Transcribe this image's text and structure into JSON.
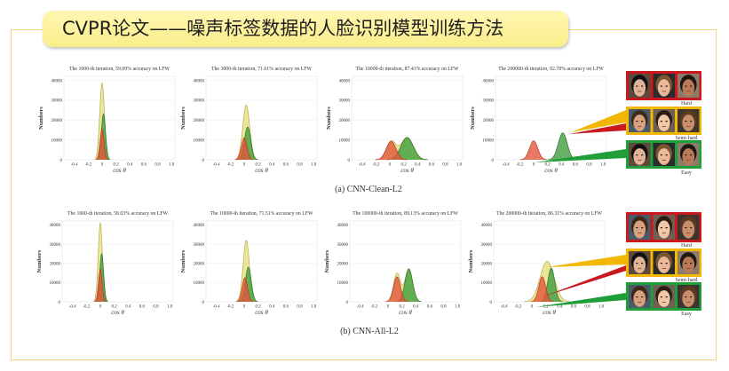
{
  "slide": {
    "title": "CVPR论文——噪声标签数据的人脸识别模型训练方法"
  },
  "figure": {
    "caption_a": "(a) CNN-Clean-L2",
    "caption_b": "(b) CNN-All-L2",
    "sample_labels": {
      "hard": "Hard",
      "semi_hard": "Semi-hard",
      "easy": "Easy"
    }
  },
  "colors": {
    "title_bg": "#fbf29a",
    "frame": "#f2d582",
    "hard": "#c8191f",
    "semi_hard": "#f2b705",
    "easy": "#1f9e3a"
  },
  "chart_data": [
    {
      "type": "area",
      "title": "The 1000-th iteration, 59.09% accuracy on LFW",
      "xlabel": "cos θ",
      "ylabel": "Numbers",
      "xlim": [
        -0.55,
        1.05
      ],
      "ylim": [
        0,
        42000
      ],
      "grid": true,
      "xticks": [
        "-0.4",
        "-0.2",
        "0",
        "0.2",
        "0.4",
        "0.6",
        "0.8",
        "1.0"
      ],
      "yticks": [
        "0",
        "10000",
        "20000",
        "30000",
        "40000"
      ],
      "series": [
        {
          "color": "#e6df7c",
          "edge": "#b6ad4a",
          "peaks": [
            {
              "x": 0.0,
              "y": 38500,
              "sd": 0.034
            }
          ]
        },
        {
          "color": "#3e9b3c",
          "edge": "#2c752b",
          "peaks": [
            {
              "x": 0.02,
              "y": 23000,
              "sd": 0.03
            }
          ]
        },
        {
          "color": "#e4523b",
          "edge": "#b93a26",
          "peaks": [
            {
              "x": 0.0,
              "y": 15500,
              "sd": 0.028
            }
          ]
        }
      ]
    },
    {
      "type": "area",
      "title": "The 3000-th iteration, 71.61% accuracy on LFW",
      "xlabel": "cos θ",
      "ylabel": "Numbers",
      "xlim": [
        -0.55,
        1.05
      ],
      "ylim": [
        0,
        42000
      ],
      "grid": true,
      "xticks": [
        "-0.4",
        "-0.2",
        "0",
        "0.2",
        "0.4",
        "0.6",
        "0.8",
        "1.0"
      ],
      "yticks": [
        "0",
        "10000",
        "20000",
        "30000",
        "40000"
      ],
      "series": [
        {
          "color": "#e6df7c",
          "edge": "#b6ad4a",
          "peaks": [
            {
              "x": 0.03,
              "y": 27500,
              "sd": 0.05
            }
          ]
        },
        {
          "color": "#3e9b3c",
          "edge": "#2c752b",
          "peaks": [
            {
              "x": 0.05,
              "y": 16500,
              "sd": 0.045
            }
          ]
        },
        {
          "color": "#e4523b",
          "edge": "#b93a26",
          "peaks": [
            {
              "x": 0.0,
              "y": 11000,
              "sd": 0.04
            }
          ]
        }
      ]
    },
    {
      "type": "area",
      "title": "The 10000-th iteration, 87.41% accuracy on LFW",
      "xlabel": "cos θ",
      "ylabel": "Numbers",
      "xlim": [
        -0.55,
        1.05
      ],
      "ylim": [
        0,
        42000
      ],
      "grid": true,
      "xticks": [
        "-0.4",
        "-0.2",
        "0",
        "0.2",
        "0.4",
        "0.6",
        "0.8",
        "1.0"
      ],
      "yticks": [
        "0",
        "10000",
        "20000",
        "30000",
        "40000"
      ],
      "series": [
        {
          "color": "#e6df7c",
          "edge": "#b6ad4a",
          "peaks": [
            {
              "x": 0.02,
              "y": 9200,
              "sd": 0.07
            },
            {
              "x": 0.25,
              "y": 11200,
              "sd": 0.09
            }
          ]
        },
        {
          "color": "#3e9b3c",
          "edge": "#2c752b",
          "peaks": [
            {
              "x": 0.25,
              "y": 11200,
              "sd": 0.09
            }
          ]
        },
        {
          "color": "#e4523b",
          "edge": "#b93a26",
          "peaks": [
            {
              "x": 0.02,
              "y": 9200,
              "sd": 0.07
            }
          ]
        }
      ]
    },
    {
      "type": "area",
      "title": "The 200000-th iteration, 92.78% accuracy on LFW",
      "xlabel": "cos θ",
      "ylabel": "Numbers",
      "xlim": [
        -0.55,
        1.05
      ],
      "ylim": [
        0,
        42000
      ],
      "grid": true,
      "xticks": [
        "-0.4",
        "-0.2",
        "0",
        "0.2",
        "0.4",
        "0.6",
        "0.8",
        "1.0"
      ],
      "yticks": [
        "0",
        "10000",
        "20000",
        "30000",
        "40000"
      ],
      "series": [
        {
          "color": "#3e9b3c",
          "edge": "#2c752b",
          "peaks": [
            {
              "x": 0.42,
              "y": 13500,
              "sd": 0.065
            }
          ]
        },
        {
          "color": "#e4523b",
          "edge": "#b93a26",
          "peaks": [
            {
              "x": 0.0,
              "y": 9500,
              "sd": 0.06
            }
          ]
        }
      ]
    },
    {
      "type": "area",
      "title": "The 1000-th iteration, 58.03% accuracy on LFW",
      "xlabel": "cos θ",
      "ylabel": "Numbers",
      "xlim": [
        -0.55,
        1.05
      ],
      "ylim": [
        0,
        42000
      ],
      "grid": true,
      "xticks": [
        "-0.4",
        "-0.2",
        "0",
        "0.2",
        "0.4",
        "0.6",
        "0.8",
        "1.0"
      ],
      "yticks": [
        "0",
        "10000",
        "20000",
        "30000",
        "40000"
      ],
      "series": [
        {
          "color": "#e6df7c",
          "edge": "#b6ad4a",
          "peaks": [
            {
              "x": 0.0,
              "y": 41000,
              "sd": 0.03
            }
          ]
        },
        {
          "color": "#3e9b3c",
          "edge": "#2c752b",
          "peaks": [
            {
              "x": 0.02,
              "y": 25000,
              "sd": 0.028
            }
          ]
        },
        {
          "color": "#e4523b",
          "edge": "#b93a26",
          "peaks": [
            {
              "x": 0.0,
              "y": 17000,
              "sd": 0.026
            }
          ]
        }
      ]
    },
    {
      "type": "area",
      "title": "The 10000-th iteration, 71.51% accuracy on LFW",
      "xlabel": "cos θ",
      "ylabel": "Numbers",
      "xlim": [
        -0.55,
        1.05
      ],
      "ylim": [
        0,
        42000
      ],
      "grid": true,
      "xticks": [
        "-0.4",
        "-0.2",
        "0",
        "0.2",
        "0.4",
        "0.6",
        "0.8",
        "1.0"
      ],
      "yticks": [
        "0",
        "10000",
        "20000",
        "30000",
        "40000"
      ],
      "series": [
        {
          "color": "#e6df7c",
          "edge": "#b6ad4a",
          "peaks": [
            {
              "x": 0.03,
              "y": 32000,
              "sd": 0.045
            }
          ]
        },
        {
          "color": "#3e9b3c",
          "edge": "#2c752b",
          "peaks": [
            {
              "x": 0.06,
              "y": 18000,
              "sd": 0.042
            }
          ]
        },
        {
          "color": "#e4523b",
          "edge": "#b93a26",
          "peaks": [
            {
              "x": 0.01,
              "y": 12500,
              "sd": 0.038
            }
          ]
        }
      ]
    },
    {
      "type": "area",
      "title": "The 100000-th iteration, 89.13% accuracy on LFW",
      "xlabel": "cos θ",
      "ylabel": "Numbers",
      "xlim": [
        -0.55,
        1.05
      ],
      "ylim": [
        0,
        42000
      ],
      "grid": true,
      "xticks": [
        "-0.4",
        "-0.2",
        "0",
        "0.2",
        "0.4",
        "0.6",
        "0.8",
        "1.0"
      ],
      "yticks": [
        "0",
        "10000",
        "20000",
        "30000",
        "40000"
      ],
      "series": [
        {
          "color": "#e6df7c",
          "edge": "#b6ad4a",
          "peaks": [
            {
              "x": 0.13,
              "y": 14800,
              "sd": 0.05
            },
            {
              "x": 0.3,
              "y": 17200,
              "sd": 0.055
            }
          ]
        },
        {
          "color": "#3e9b3c",
          "edge": "#2c752b",
          "peaks": [
            {
              "x": 0.3,
              "y": 17000,
              "sd": 0.055
            }
          ]
        },
        {
          "color": "#e4523b",
          "edge": "#b93a26",
          "peaks": [
            {
              "x": 0.13,
              "y": 12900,
              "sd": 0.05
            }
          ]
        }
      ]
    },
    {
      "type": "area",
      "title": "The 200000-th iteration, 86.31% accuracy on LFW",
      "xlabel": "cos θ",
      "ylabel": "Numbers",
      "xlim": [
        -0.55,
        1.05
      ],
      "ylim": [
        0,
        42000
      ],
      "grid": true,
      "xticks": [
        "-0.4",
        "-0.2",
        "0",
        "0.2",
        "0.4",
        "0.6",
        "0.8",
        "1.0"
      ],
      "yticks": [
        "0",
        "10000",
        "20000",
        "30000",
        "40000"
      ],
      "series": [
        {
          "color": "#e6df7c",
          "edge": "#b6ad4a",
          "peaks": [
            {
              "x": 0.22,
              "y": 21000,
              "sd": 0.1
            }
          ]
        },
        {
          "color": "#3e9b3c",
          "edge": "#2c752b",
          "peaks": [
            {
              "x": 0.28,
              "y": 17500,
              "sd": 0.05
            }
          ]
        },
        {
          "color": "#e4523b",
          "edge": "#b93a26",
          "peaks": [
            {
              "x": 0.15,
              "y": 13000,
              "sd": 0.05
            }
          ]
        }
      ]
    }
  ]
}
